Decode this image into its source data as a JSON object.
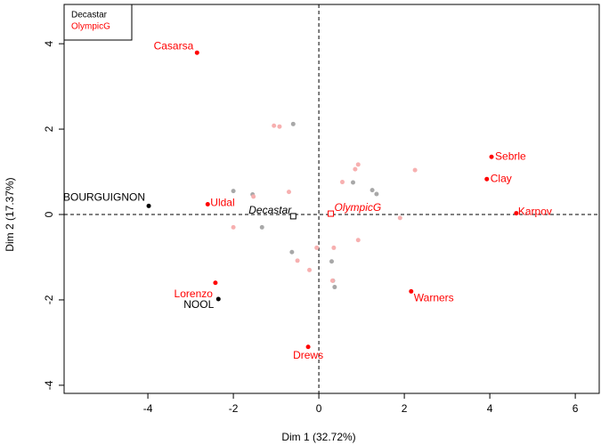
{
  "chart_data": {
    "type": "scatter",
    "x_label": "Dim 1 (32.72%)",
    "y_label": "Dim 2 (17.37%)",
    "xlim": [
      -5.96,
      6.56
    ],
    "ylim": [
      -4.19,
      4.92
    ],
    "xticks": [
      -4,
      -2,
      0,
      2,
      4,
      6
    ],
    "yticks": [
      -4,
      -2,
      0,
      2,
      4
    ],
    "zero_lines": {
      "x": 0,
      "y": 0
    },
    "legend": "top-left",
    "series": [
      {
        "name": "Decastar",
        "color": "#000000",
        "faded_color": "#a8a8a8",
        "x": [
          -3.98,
          -2.35,
          -2.0,
          -1.55,
          -1.33,
          -0.6,
          0.8,
          1.25,
          1.35,
          -0.63,
          0.3,
          0.37,
          0.33
        ],
        "y": [
          0.2,
          -1.98,
          0.55,
          0.47,
          -0.3,
          2.12,
          0.75,
          0.57,
          0.48,
          -0.88,
          -1.1,
          -1.7,
          -1.55
        ],
        "labels": [
          "BOURGUIGNON",
          "NOOL",
          null,
          null,
          null,
          null,
          null,
          null,
          null,
          null,
          null,
          null,
          null
        ]
      },
      {
        "name": "OlympicG",
        "color": "#ff0000",
        "faded_color": "#f7b0b0",
        "x": [
          -2.85,
          -2.6,
          -2.42,
          -0.25,
          4.04,
          3.93,
          4.62,
          2.16,
          -1.05,
          -0.92,
          -0.7,
          -1.53,
          -2.0,
          0.92,
          0.85,
          0.55,
          2.25,
          1.9,
          0.92,
          0.35,
          -0.05,
          -0.5,
          -0.22,
          0.32
        ],
        "y": [
          3.79,
          0.24,
          -1.6,
          -3.1,
          1.35,
          0.83,
          0.03,
          -1.8,
          2.08,
          2.06,
          0.53,
          0.42,
          -0.3,
          1.17,
          1.06,
          0.76,
          1.04,
          -0.08,
          -0.6,
          -0.78,
          -0.78,
          -1.08,
          -1.3,
          -1.55
        ],
        "labels": [
          "Casarsa",
          "Uldal",
          "Lorenzo",
          "Drews",
          "Sebrle",
          "Clay",
          "Karpov",
          "Warners",
          null,
          null,
          null,
          null,
          null,
          null,
          null,
          null,
          null,
          null,
          null,
          null,
          null,
          null,
          null,
          null
        ]
      }
    ],
    "centers": [
      {
        "name": "Decastar",
        "x": -0.6,
        "y": -0.04,
        "color": "#000000"
      },
      {
        "name": "OlympicG",
        "x": 0.28,
        "y": 0.02,
        "color": "#ff0000"
      }
    ]
  }
}
